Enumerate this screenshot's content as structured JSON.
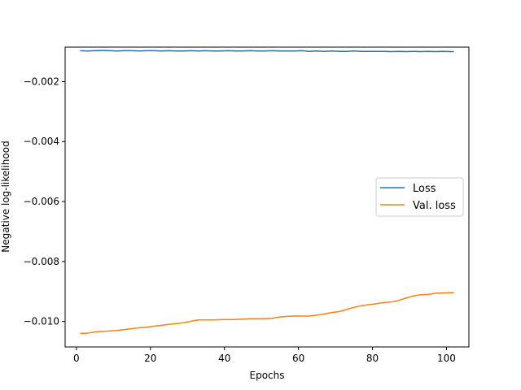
{
  "chart_data": {
    "type": "line",
    "title": "",
    "xlabel": "Epochs",
    "ylabel": "Negative log-likelihood",
    "xlim": [
      -3.05,
      106.05
    ],
    "ylim": [
      -0.01085,
      -0.00085
    ],
    "x_ticks": [
      0,
      20,
      40,
      60,
      80,
      100
    ],
    "x_tick_labels": [
      "0",
      "20",
      "40",
      "60",
      "80",
      "100"
    ],
    "y_ticks": [
      -0.002,
      -0.004,
      -0.006,
      -0.008,
      -0.01
    ],
    "y_tick_labels": [
      "−0.002",
      "−0.004",
      "−0.006",
      "−0.008",
      "−0.010"
    ],
    "grid": false,
    "legend_position": "center-right",
    "series": [
      {
        "name": "Loss",
        "color": "#1f77b4",
        "x": [
          1,
          3,
          5,
          7,
          9,
          11,
          13,
          15,
          17,
          19,
          21,
          23,
          25,
          27,
          29,
          31,
          33,
          35,
          37,
          39,
          41,
          43,
          45,
          47,
          49,
          51,
          53,
          55,
          57,
          59,
          61,
          63,
          65,
          67,
          69,
          71,
          73,
          75,
          77,
          79,
          81,
          83,
          85,
          87,
          89,
          91,
          93,
          95,
          97,
          99,
          101,
          102
        ],
        "y": [
          -0.00097,
          -0.00098,
          -0.00097,
          -0.00096,
          -0.00097,
          -0.00098,
          -0.00097,
          -0.00097,
          -0.00098,
          -0.00097,
          -0.00097,
          -0.00098,
          -0.00097,
          -0.00098,
          -0.00098,
          -0.00097,
          -0.00098,
          -0.00097,
          -0.00098,
          -0.00098,
          -0.00097,
          -0.00098,
          -0.00098,
          -0.00097,
          -0.00098,
          -0.00098,
          -0.00097,
          -0.00098,
          -0.00098,
          -0.00098,
          -0.00097,
          -0.00099,
          -0.00098,
          -0.00099,
          -0.00098,
          -0.00099,
          -0.00099,
          -0.00098,
          -0.00099,
          -0.00099,
          -0.00099,
          -0.00099,
          -0.001,
          -0.00099,
          -0.001,
          -0.00099,
          -0.001,
          -0.00099,
          -0.001,
          -0.00099,
          -0.001,
          -0.001
        ]
      },
      {
        "name": "Val. loss",
        "color": "#ff7f0e",
        "x": [
          1,
          3,
          5,
          7,
          9,
          11,
          13,
          15,
          17,
          19,
          21,
          23,
          25,
          27,
          29,
          31,
          33,
          35,
          37,
          39,
          41,
          43,
          45,
          47,
          49,
          51,
          53,
          55,
          57,
          59,
          61,
          63,
          65,
          67,
          69,
          71,
          73,
          75,
          77,
          79,
          81,
          83,
          85,
          87,
          89,
          91,
          93,
          95,
          97,
          99,
          101,
          102
        ],
        "y": [
          -0.0104,
          -0.01039,
          -0.01035,
          -0.01033,
          -0.01032,
          -0.0103,
          -0.01027,
          -0.01024,
          -0.01021,
          -0.01019,
          -0.01016,
          -0.01013,
          -0.0101,
          -0.01007,
          -0.01004,
          -0.00999,
          -0.00995,
          -0.00995,
          -0.00995,
          -0.00994,
          -0.00994,
          -0.00993,
          -0.00992,
          -0.00991,
          -0.00991,
          -0.00991,
          -0.00989,
          -0.00985,
          -0.00983,
          -0.00982,
          -0.00982,
          -0.00982,
          -0.00979,
          -0.00975,
          -0.0097,
          -0.00967,
          -0.0096,
          -0.00953,
          -0.00947,
          -0.00944,
          -0.00941,
          -0.00937,
          -0.00935,
          -0.0093,
          -0.00922,
          -0.00915,
          -0.00911,
          -0.0091,
          -0.00906,
          -0.00905,
          -0.00904,
          -0.00904
        ]
      }
    ]
  }
}
